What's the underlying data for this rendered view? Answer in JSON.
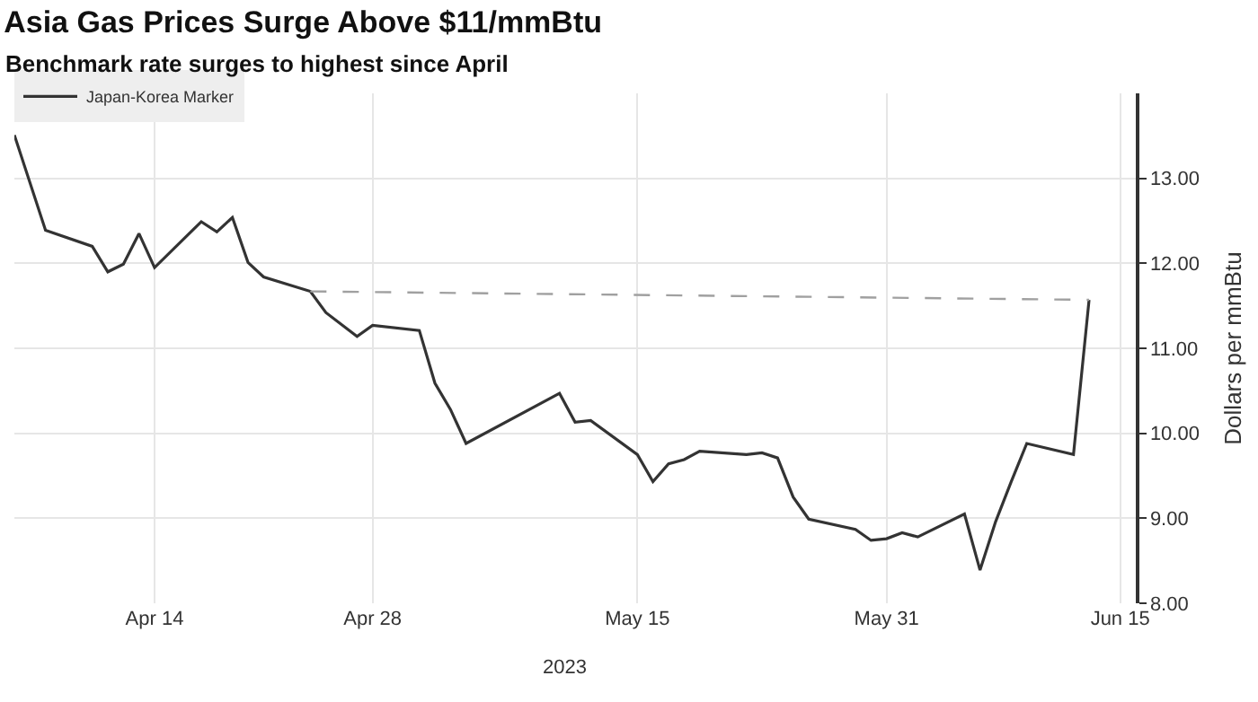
{
  "chart_data": {
    "type": "line",
    "title": "Asia Gas Prices Surge Above $11/mmBtu",
    "subtitle": "Benchmark rate surges to highest since April",
    "ylabel": "Dollars per mmBtu",
    "annotations": [
      "2023"
    ],
    "x": [
      "2023-04-05",
      "2023-04-07",
      "2023-04-10",
      "2023-04-11",
      "2023-04-12",
      "2023-04-13",
      "2023-04-14",
      "2023-04-17",
      "2023-04-18",
      "2023-04-19",
      "2023-04-20",
      "2023-04-21",
      "2023-04-24",
      "2023-04-25",
      "2023-04-27",
      "2023-04-28",
      "2023-05-01",
      "2023-05-02",
      "2023-05-03",
      "2023-05-04",
      "2023-05-10",
      "2023-05-11",
      "2023-05-12",
      "2023-05-15",
      "2023-05-16",
      "2023-05-17",
      "2023-05-18",
      "2023-05-19",
      "2023-05-22",
      "2023-05-23",
      "2023-05-24",
      "2023-05-25",
      "2023-05-26",
      "2023-05-29",
      "2023-05-30",
      "2023-05-31",
      "2023-06-01",
      "2023-06-02",
      "2023-06-05",
      "2023-06-06",
      "2023-06-07",
      "2023-06-08",
      "2023-06-09",
      "2023-06-12",
      "2023-06-13"
    ],
    "series": [
      {
        "name": "Japan-Korea Marker",
        "color": "#333333",
        "values": [
          13.51,
          12.39,
          12.2,
          11.9,
          11.99,
          12.35,
          11.95,
          12.49,
          12.37,
          12.54,
          12.01,
          11.84,
          11.67,
          11.42,
          11.14,
          11.27,
          11.21,
          10.59,
          10.28,
          9.88,
          10.47,
          10.13,
          10.15,
          9.75,
          9.43,
          9.64,
          9.69,
          9.79,
          9.75,
          9.77,
          9.71,
          9.25,
          8.99,
          8.87,
          8.74,
          8.76,
          8.83,
          8.78,
          9.05,
          8.39,
          8.96,
          9.43,
          9.88,
          9.75,
          11.57
        ]
      },
      {
        "color": "#a0a0a0",
        "line_style": "dashed",
        "x": [
          "2023-04-24",
          "2023-06-13"
        ],
        "values": [
          11.67,
          11.57
        ]
      }
    ],
    "xlim": [
      "2023-04-05",
      "2023-06-16"
    ],
    "xticks": [
      {
        "value": "2023-04-14",
        "label": "Apr 14"
      },
      {
        "value": "2023-04-28",
        "label": "Apr 28"
      },
      {
        "value": "2023-05-15",
        "label": "May 15"
      },
      {
        "value": "2023-05-31",
        "label": "May 31"
      },
      {
        "value": "2023-06-15",
        "label": "Jun 15"
      }
    ],
    "ylim": [
      8,
      14
    ],
    "yticks": [
      {
        "value": 8,
        "label": "8.00"
      },
      {
        "value": 9,
        "label": "9.00"
      },
      {
        "value": 10,
        "label": "10.00"
      },
      {
        "value": 11,
        "label": "11.00"
      },
      {
        "value": 12,
        "label": "12.00"
      },
      {
        "value": 13,
        "label": "13.00"
      }
    ],
    "grid": true,
    "legend": "top left"
  }
}
